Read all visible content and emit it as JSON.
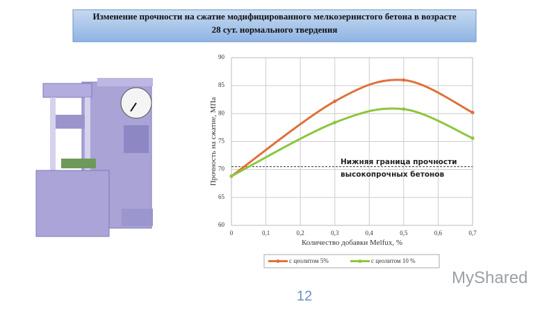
{
  "title": "Изменение прочности на сжатие модифицированного мелкозернистого бетона в возрасте 28 сут. нормального твердения",
  "page_number": "12",
  "watermark": "MyShared",
  "chart_data": {
    "type": "line",
    "x": [
      0,
      0.3,
      0.5,
      0.7
    ],
    "series": [
      {
        "name": "с цеолитом 5%",
        "color": "#e0703a",
        "values": [
          68.8,
          82.2,
          86,
          80.2
        ]
      },
      {
        "name": "с цеолитом 10 %",
        "color": "#8cc63f",
        "values": [
          68.8,
          78.4,
          80.8,
          75.6
        ]
      }
    ],
    "xlim": [
      0,
      0.7
    ],
    "xticks": [
      0,
      {
        "value": 0.1,
        "label": "0,1"
      },
      {
        "value": 0.2,
        "label": "0,2"
      },
      {
        "value": 0.3,
        "label": "0,3"
      },
      {
        "value": 0.4,
        "label": "0,4"
      },
      {
        "value": 0.5,
        "label": "0,5"
      },
      {
        "value": 0.6,
        "label": "0,6"
      },
      {
        "value": 0.7,
        "label": "0,7"
      }
    ],
    "ylim": [
      60,
      90
    ],
    "yticks": [
      60,
      65,
      70,
      75,
      80,
      85,
      90
    ],
    "grid": true,
    "xlabel": "Количество добавки Melfux, %",
    "ylabel": "Прочность на сжатие, МПа",
    "reference_line": 70.5,
    "annotation": [
      "Нижняя граница прочности",
      "высокопрочных бетонов"
    ],
    "legend": "bottom"
  }
}
